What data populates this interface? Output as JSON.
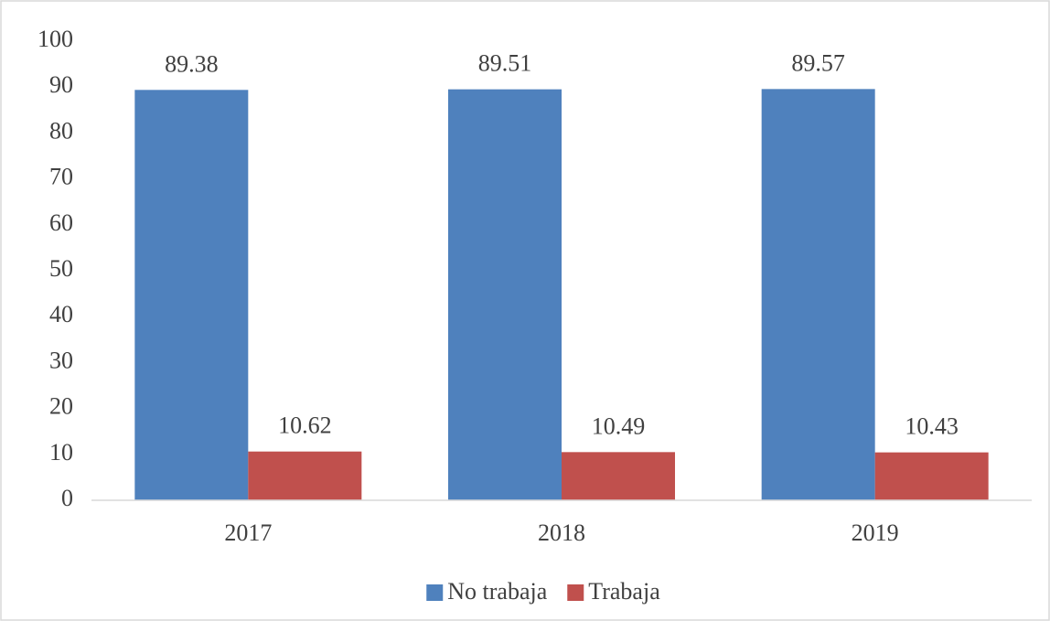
{
  "chart_data": {
    "type": "bar",
    "categories": [
      "2017",
      "2018",
      "2019"
    ],
    "series": [
      {
        "name": "No trabaja",
        "color": "#4f81bd",
        "values": [
          89.38,
          89.51,
          89.57
        ]
      },
      {
        "name": "Trabaja",
        "color": "#c0504d",
        "values": [
          10.62,
          10.49,
          10.43
        ]
      }
    ],
    "ylim": [
      0,
      100
    ],
    "yticks": [
      0,
      10,
      20,
      30,
      40,
      50,
      60,
      70,
      80,
      90,
      100
    ],
    "grid": false,
    "legend": "bottom"
  }
}
